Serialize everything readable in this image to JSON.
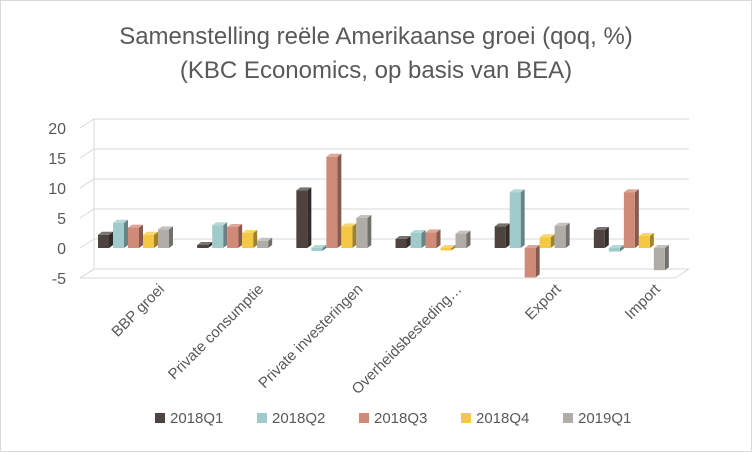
{
  "chart_data": {
    "type": "bar",
    "title": "Samenstelling reële Amerikaanse groei (qoq, %)",
    "subtitle": "(KBC Economics, op basis van BEA)",
    "categories": [
      "BBP groei",
      "Private consumptie",
      "Private investeringen",
      "Overheidsbesteding…",
      "Export",
      "Import"
    ],
    "series": [
      {
        "name": "2018Q1",
        "color": "#4e433e",
        "values": [
          2.2,
          0.5,
          9.6,
          1.5,
          3.6,
          3.0
        ]
      },
      {
        "name": "2018Q2",
        "color": "#9fcbcb",
        "values": [
          4.2,
          3.8,
          -0.5,
          2.5,
          9.3,
          -0.6
        ]
      },
      {
        "name": "2018Q3",
        "color": "#d08a78",
        "values": [
          3.4,
          3.5,
          15.2,
          2.6,
          -4.9,
          9.3
        ]
      },
      {
        "name": "2018Q4",
        "color": "#f4c842",
        "values": [
          2.2,
          2.5,
          3.6,
          -0.4,
          1.8,
          2.0
        ]
      },
      {
        "name": "2019Q1",
        "color": "#b0aca8",
        "values": [
          3.1,
          1.2,
          5.0,
          2.4,
          3.7,
          -3.7
        ]
      }
    ],
    "yticks": [
      -5,
      0,
      5,
      10,
      15,
      20
    ],
    "ylim": [
      -5,
      20
    ],
    "grid": true,
    "legend": "bottom",
    "chart_style": "3d-clustered-column"
  }
}
